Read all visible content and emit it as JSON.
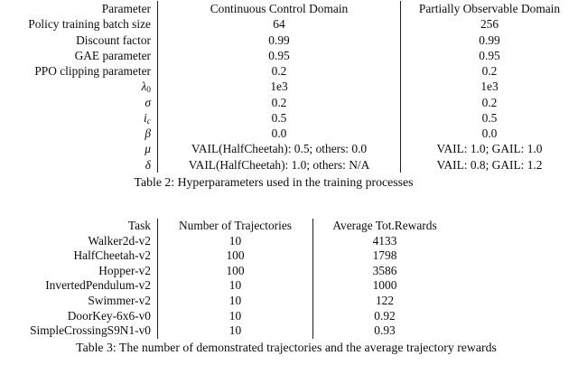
{
  "page": {
    "type": "academic-paper-tables",
    "background": "#ffffff",
    "text_color": "#0d0d0d",
    "rule_color": "#1f1f1f"
  },
  "table2": {
    "headers": [
      "Parameter",
      "Continuous Control Domain",
      "Partially Observable Domain"
    ],
    "rows": [
      {
        "param": "Policy training batch size",
        "sub": "",
        "italic": false,
        "sub_italic": false,
        "col2": "64",
        "col3": "256"
      },
      {
        "param": "Discount factor",
        "sub": "",
        "italic": false,
        "sub_italic": false,
        "col2": "0.99",
        "col3": "0.99"
      },
      {
        "param": "GAE parameter",
        "sub": "",
        "italic": false,
        "sub_italic": false,
        "col2": "0.95",
        "col3": "0.95"
      },
      {
        "param": "PPO clipping parameter",
        "sub": "",
        "italic": false,
        "sub_italic": false,
        "col2": "0.2",
        "col3": "0.2"
      },
      {
        "param": "λ",
        "sub": "0",
        "italic": true,
        "sub_italic": false,
        "col2": "1e3",
        "col3": "1e3"
      },
      {
        "param": "σ",
        "sub": "",
        "italic": true,
        "sub_italic": false,
        "col2": "0.2",
        "col3": "0.2"
      },
      {
        "param": "i",
        "sub": "c",
        "italic": true,
        "sub_italic": true,
        "col2": "0.5",
        "col3": "0.5"
      },
      {
        "param": "β",
        "sub": "",
        "italic": true,
        "sub_italic": false,
        "col2": "0.0",
        "col3": "0.0"
      },
      {
        "param": "μ",
        "sub": "",
        "italic": true,
        "sub_italic": false,
        "col2": "VAIL(HalfCheetah): 0.5; others: 0.0",
        "col3": "VAIL: 1.0; GAIL: 1.0"
      },
      {
        "param": "δ",
        "sub": "",
        "italic": true,
        "sub_italic": false,
        "col2": "VAIL(HalfCheetah): 1.0; others: N/A",
        "col3": "VAIL: 0.8; GAIL: 1.2"
      }
    ],
    "caption": "Table 2: Hyperparameters used in the training processes"
  },
  "table3": {
    "headers": [
      "Task",
      "Number of Trajectories",
      "Average Tot.Rewards"
    ],
    "rows": [
      {
        "param": "Walker2d-v2",
        "sub": "",
        "italic": false,
        "sub_italic": false,
        "col2": "10",
        "col3": "4133"
      },
      {
        "param": "HalfCheetah-v2",
        "sub": "",
        "italic": false,
        "sub_italic": false,
        "col2": "100",
        "col3": "1798"
      },
      {
        "param": "Hopper-v2",
        "sub": "",
        "italic": false,
        "sub_italic": false,
        "col2": "100",
        "col3": "3586"
      },
      {
        "param": "InvertedPendulum-v2",
        "sub": "",
        "italic": false,
        "sub_italic": false,
        "col2": "10",
        "col3": "1000"
      },
      {
        "param": "Swimmer-v2",
        "sub": "",
        "italic": false,
        "sub_italic": false,
        "col2": "10",
        "col3": "122"
      },
      {
        "param": "DoorKey-6x6-v0",
        "sub": "",
        "italic": false,
        "sub_italic": false,
        "col2": "10",
        "col3": "0.92"
      },
      {
        "param": "SimpleCrossingS9N1-v0",
        "sub": "",
        "italic": false,
        "sub_italic": false,
        "col2": "10",
        "col3": "0.93"
      }
    ],
    "caption": "Table 3: The number of demonstrated trajectories and the average trajectory rewards"
  }
}
